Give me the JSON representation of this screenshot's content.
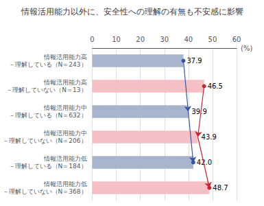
{
  "chart_data": {
    "type": "bar",
    "orientation": "horizontal",
    "title": "情報活用能力以外に、安全性への理解の有無も不安感に影響",
    "xlabel": "(%)",
    "categories": [
      "情報活用能力高\n－理解している（N＝243）",
      "情報活用能力高\n－理解していない（N＝13）",
      "情報活用能力中\n－理解している（N＝632）",
      "情報活用能力中\n－理解していない（N＝206）",
      "情報活用能力低\n－理解している（N＝184）",
      "情報活用能力低\n－理解していない（N＝368）"
    ],
    "series": [
      {
        "type": "bar",
        "values": [
          37.9,
          46.5,
          39.9,
          43.9,
          42.0,
          48.7
        ],
        "value_labels": [
          "37.9",
          "46.5",
          "39.9",
          "43.9",
          "42.0",
          "48.7"
        ],
        "colors": [
          "#a8b4cc",
          "#f5c0c4",
          "#a8b4cc",
          "#f5c0c4",
          "#a8b4cc",
          "#f5c0c4"
        ],
        "data_labels": true
      },
      {
        "type": "line",
        "color": "#3355aa",
        "marker": "circle",
        "values": [
          37.9,
          null,
          39.9,
          null,
          42.0,
          null
        ]
      },
      {
        "type": "line",
        "color": "#cc2233",
        "marker": "circle",
        "values": [
          null,
          46.5,
          null,
          43.9,
          null,
          48.7
        ]
      }
    ],
    "xlim": [
      0,
      60
    ],
    "xticks": [
      0,
      10,
      20,
      30,
      40,
      50,
      60
    ],
    "grid": true
  }
}
